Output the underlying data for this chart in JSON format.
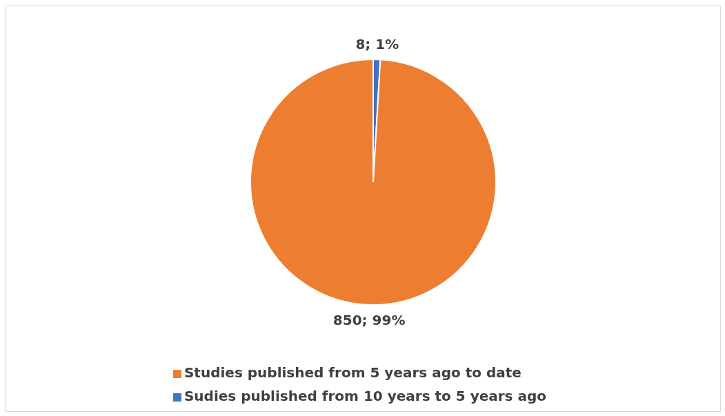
{
  "chart_data": {
    "type": "pie",
    "categories": [
      "Sudies published from 10 years to 5 years ago",
      "Studies published from 5 years ago to date"
    ],
    "values": [
      8,
      850
    ],
    "colors": [
      "#4472c4",
      "#ed7d31"
    ],
    "value_labels": [
      "8; 1%",
      "850; 99%"
    ],
    "legend": "bottom"
  }
}
